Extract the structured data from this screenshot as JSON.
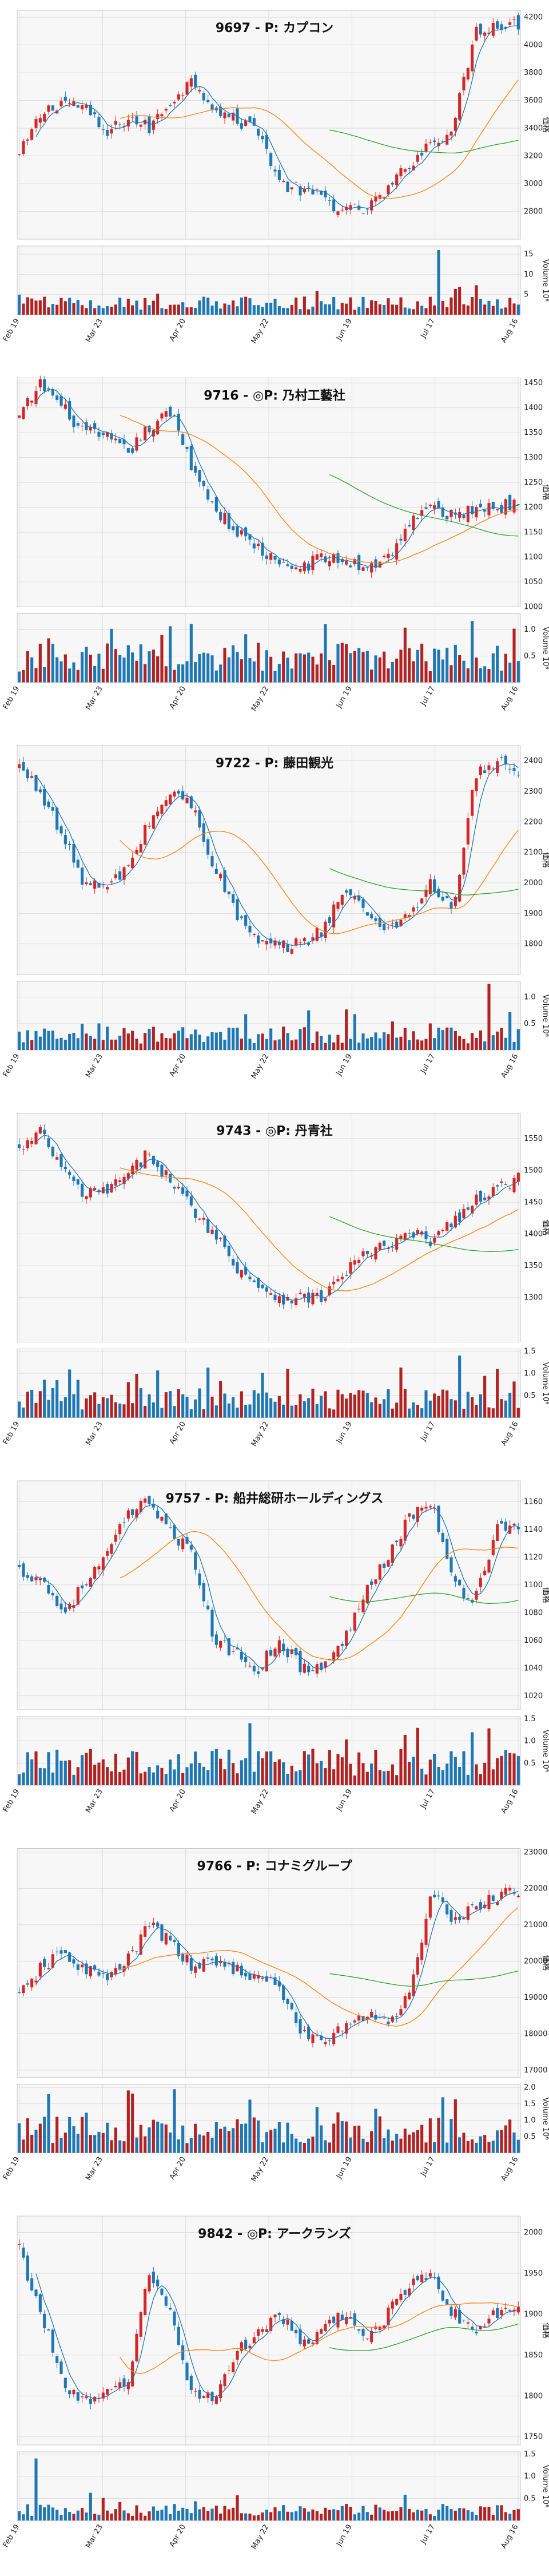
{
  "page": {
    "background": "#ffffff"
  },
  "style": {
    "up_color": "#d62728",
    "down_color": "#1f77b4",
    "vol_up_color": "#b22222",
    "vol_down_color": "#1f77b4",
    "ma_short_color": "#1f77b4",
    "ma_mid_color": "#ff7f0e",
    "ma_long_color": "#2ca02c",
    "grid_color": "#d9d9d9",
    "panel_bg": "#f7f7f7"
  },
  "chart_data": [
    {
      "type": "candlestick",
      "title": "9697 - P: カプコン",
      "ylabel": "価格",
      "volume_label": "Volume  10⁶",
      "x_ticks": [
        "Feb 19",
        "Mar 23",
        "Apr 20",
        "May 22",
        "Jun 19",
        "Jul 17",
        "Aug 16"
      ],
      "ylim": [
        2600,
        4250
      ],
      "yticks": [
        2800,
        3000,
        3200,
        3400,
        3600,
        3800,
        4000,
        4200
      ],
      "vol_ylim": [
        0,
        17
      ],
      "vol_ticks": [
        {
          "v": 5,
          "label": "5"
        },
        {
          "v": 10,
          "label": "10"
        },
        {
          "v": 15,
          "label": "15"
        }
      ],
      "close_points": [
        3200,
        3500,
        3600,
        3550,
        3350,
        3480,
        3400,
        3600,
        3750,
        3550,
        3450,
        3400,
        3000,
        2950,
        2900,
        2800,
        2820,
        2950,
        3150,
        3300,
        3400,
        4100,
        4150,
        4150
      ],
      "spike_index": 0.84,
      "spike_value": 16,
      "vol_base": 3
    },
    {
      "type": "candlestick",
      "title": "9716 - ◎P: 乃村工藝社",
      "ylabel": "価格",
      "volume_label": "Volume  10⁶",
      "x_ticks": [
        "Feb 19",
        "Mar 23",
        "Apr 20",
        "May 22",
        "Jun 19",
        "Jul 17",
        "Aug 16"
      ],
      "ylim": [
        1000,
        1460
      ],
      "yticks": [
        1000,
        1050,
        1100,
        1150,
        1200,
        1250,
        1300,
        1350,
        1400,
        1450
      ],
      "vol_ylim": [
        0,
        1.3
      ],
      "vol_ticks": [
        {
          "v": 0.5,
          "label": "0.5"
        },
        {
          "v": 1.0,
          "label": "1.0"
        }
      ],
      "close_points": [
        1380,
        1450,
        1400,
        1350,
        1340,
        1310,
        1360,
        1390,
        1280,
        1200,
        1150,
        1120,
        1080,
        1080,
        1100,
        1090,
        1080,
        1100,
        1170,
        1200,
        1180,
        1200,
        1200,
        1210
      ],
      "spike_index": 0.61,
      "spike_value": 1.1,
      "vol_base": 0.5
    },
    {
      "type": "candlestick",
      "title": "9722 - P: 藤田観光",
      "ylabel": "価格",
      "volume_label": "Volume  10⁶",
      "x_ticks": [
        "Feb 19",
        "Mar 23",
        "Apr 20",
        "May 22",
        "Jun 19",
        "Jul 17",
        "Aug 16"
      ],
      "ylim": [
        1700,
        2450
      ],
      "yticks": [
        1800,
        1900,
        2000,
        2100,
        2200,
        2300,
        2400
      ],
      "vol_ylim": [
        0,
        1.3
      ],
      "vol_ticks": [
        {
          "v": 0.5,
          "label": "0.5"
        },
        {
          "v": 1.0,
          "label": "1.0"
        }
      ],
      "close_points": [
        2380,
        2300,
        2150,
        2000,
        1980,
        2050,
        2200,
        2300,
        2250,
        2050,
        1900,
        1800,
        1790,
        1800,
        1850,
        1980,
        1900,
        1850,
        1900,
        2000,
        1900,
        2350,
        2400,
        2350
      ],
      "spike_index": 0.94,
      "spike_value": 1.25,
      "vol_base": 0.3
    },
    {
      "type": "candlestick",
      "title": "9743 - ◎P: 丹青社",
      "ylabel": "価格",
      "volume_label": "Volume  10⁶",
      "x_ticks": [
        "Feb 19",
        "Mar 23",
        "Apr 20",
        "May 22",
        "Jun 19",
        "Jul 17",
        "Aug 16"
      ],
      "ylim": [
        1230,
        1590
      ],
      "yticks": [
        1300,
        1350,
        1400,
        1450,
        1500,
        1550
      ],
      "vol_ylim": [
        0,
        1.55
      ],
      "vol_ticks": [
        {
          "v": 0.5,
          "label": "0.5"
        },
        {
          "v": 1.0,
          "label": "1.0"
        },
        {
          "v": 1.5,
          "label": "1.5"
        }
      ],
      "close_points": [
        1530,
        1560,
        1500,
        1460,
        1470,
        1490,
        1530,
        1480,
        1440,
        1400,
        1350,
        1320,
        1300,
        1300,
        1300,
        1340,
        1370,
        1380,
        1400,
        1390,
        1420,
        1450,
        1470,
        1490
      ],
      "spike_index": 0.88,
      "spike_value": 1.4,
      "vol_base": 0.45
    },
    {
      "type": "candlestick",
      "title": "9757 - P: 船井総研ホールディングス",
      "ylabel": "価格",
      "volume_label": "Volume  10⁶",
      "x_ticks": [
        "Feb 19",
        "Mar 23",
        "Apr 20",
        "May 22",
        "Jun 19",
        "Jul 17",
        "Aug 16"
      ],
      "ylim": [
        1010,
        1175
      ],
      "yticks": [
        1020,
        1040,
        1060,
        1080,
        1100,
        1120,
        1140,
        1160
      ],
      "vol_ylim": [
        0,
        1.55
      ],
      "vol_ticks": [
        {
          "v": 0.5,
          "label": "0.5"
        },
        {
          "v": 1.0,
          "label": "1.0"
        },
        {
          "v": 1.5,
          "label": "1.5"
        }
      ],
      "close_points": [
        1110,
        1105,
        1080,
        1100,
        1120,
        1150,
        1160,
        1140,
        1120,
        1060,
        1050,
        1040,
        1060,
        1040,
        1040,
        1060,
        1100,
        1120,
        1150,
        1160,
        1100,
        1090,
        1140,
        1145
      ],
      "spike_index": 0.46,
      "spike_value": 1.4,
      "vol_base": 0.55
    },
    {
      "type": "candlestick",
      "title": "9766 - P: コナミグループ",
      "ylabel": "価格",
      "volume_label": "Volume  10⁶",
      "x_ticks": [
        "Feb 19",
        "Mar 23",
        "Apr 20",
        "May 22",
        "Jun 19",
        "Jul 17",
        "Aug 16"
      ],
      "ylim": [
        16800,
        23100
      ],
      "yticks": [
        17000,
        18000,
        19000,
        20000,
        21000,
        22000,
        23000
      ],
      "vol_ylim": [
        0,
        2.1
      ],
      "vol_ticks": [
        {
          "v": 0.5,
          "label": "0.5"
        },
        {
          "v": 1.0,
          "label": "1.0"
        },
        {
          "v": 1.5,
          "label": "1.5"
        },
        {
          "v": 2.0,
          "label": "2.0"
        }
      ],
      "close_points": [
        19000,
        19800,
        20200,
        19800,
        19500,
        20000,
        21000,
        20500,
        19800,
        20000,
        19800,
        19500,
        19300,
        18000,
        17800,
        18200,
        18500,
        18400,
        19000,
        22000,
        21000,
        21500,
        21800,
        21900
      ],
      "spike_index": 0.85,
      "spike_value": 1.7,
      "vol_base": 0.75
    },
    {
      "type": "candlestick",
      "title": "9842 - ◎P: アークランズ",
      "ylabel": "価格",
      "volume_label": "Volume  10⁶",
      "x_ticks": [
        "Feb 19",
        "Mar 23",
        "Apr 20",
        "May 22",
        "Jun 19",
        "Jul 17",
        "Aug 16"
      ],
      "ylim": [
        1740,
        2020
      ],
      "yticks": [
        1750,
        1800,
        1850,
        1900,
        1950,
        2000
      ],
      "vol_ylim": [
        0,
        1.55
      ],
      "vol_ticks": [
        {
          "v": 0.5,
          "label": "0.5"
        },
        {
          "v": 1.0,
          "label": "1.0"
        },
        {
          "v": 1.5,
          "label": "1.5"
        }
      ],
      "close_points": [
        1980,
        1900,
        1820,
        1790,
        1800,
        1820,
        1950,
        1900,
        1800,
        1800,
        1850,
        1880,
        1900,
        1860,
        1880,
        1900,
        1870,
        1900,
        1940,
        1950,
        1900,
        1880,
        1900,
        1910
      ],
      "spike_index": 0.03,
      "spike_value": 1.4,
      "vol_base": 0.25
    }
  ]
}
